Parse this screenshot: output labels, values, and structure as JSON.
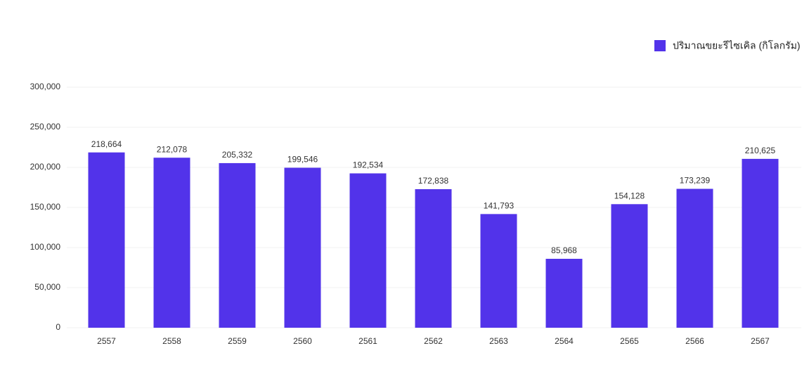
{
  "chart_data": {
    "type": "bar",
    "categories": [
      "2557",
      "2558",
      "2559",
      "2560",
      "2561",
      "2562",
      "2563",
      "2564",
      "2565",
      "2566",
      "2567"
    ],
    "series": [
      {
        "name": "ปริมาณขยะรีไซเคิล (กิโลกรัม)",
        "color": "#5233ea",
        "values": [
          218664,
          212078,
          205332,
          199546,
          192534,
          172838,
          141793,
          85968,
          154128,
          173239,
          210625
        ],
        "value_labels": [
          "218,664",
          "212,078",
          "205,332",
          "199,546",
          "192,534",
          "172,838",
          "141,793",
          "85,968",
          "154,128",
          "173,239",
          "210,625"
        ]
      }
    ],
    "ylim": [
      0,
      300000
    ],
    "yticks": [
      0,
      {
        "value": 50000,
        "label": "50,000"
      },
      {
        "value": 100000,
        "label": "100,000"
      },
      {
        "value": 150000,
        "label": "150,000"
      },
      {
        "value": 200000,
        "label": "200,000"
      },
      {
        "value": 250000,
        "label": "250,000"
      },
      {
        "value": 300000,
        "label": "300,000"
      }
    ],
    "grid": true,
    "legend": "top-right"
  }
}
